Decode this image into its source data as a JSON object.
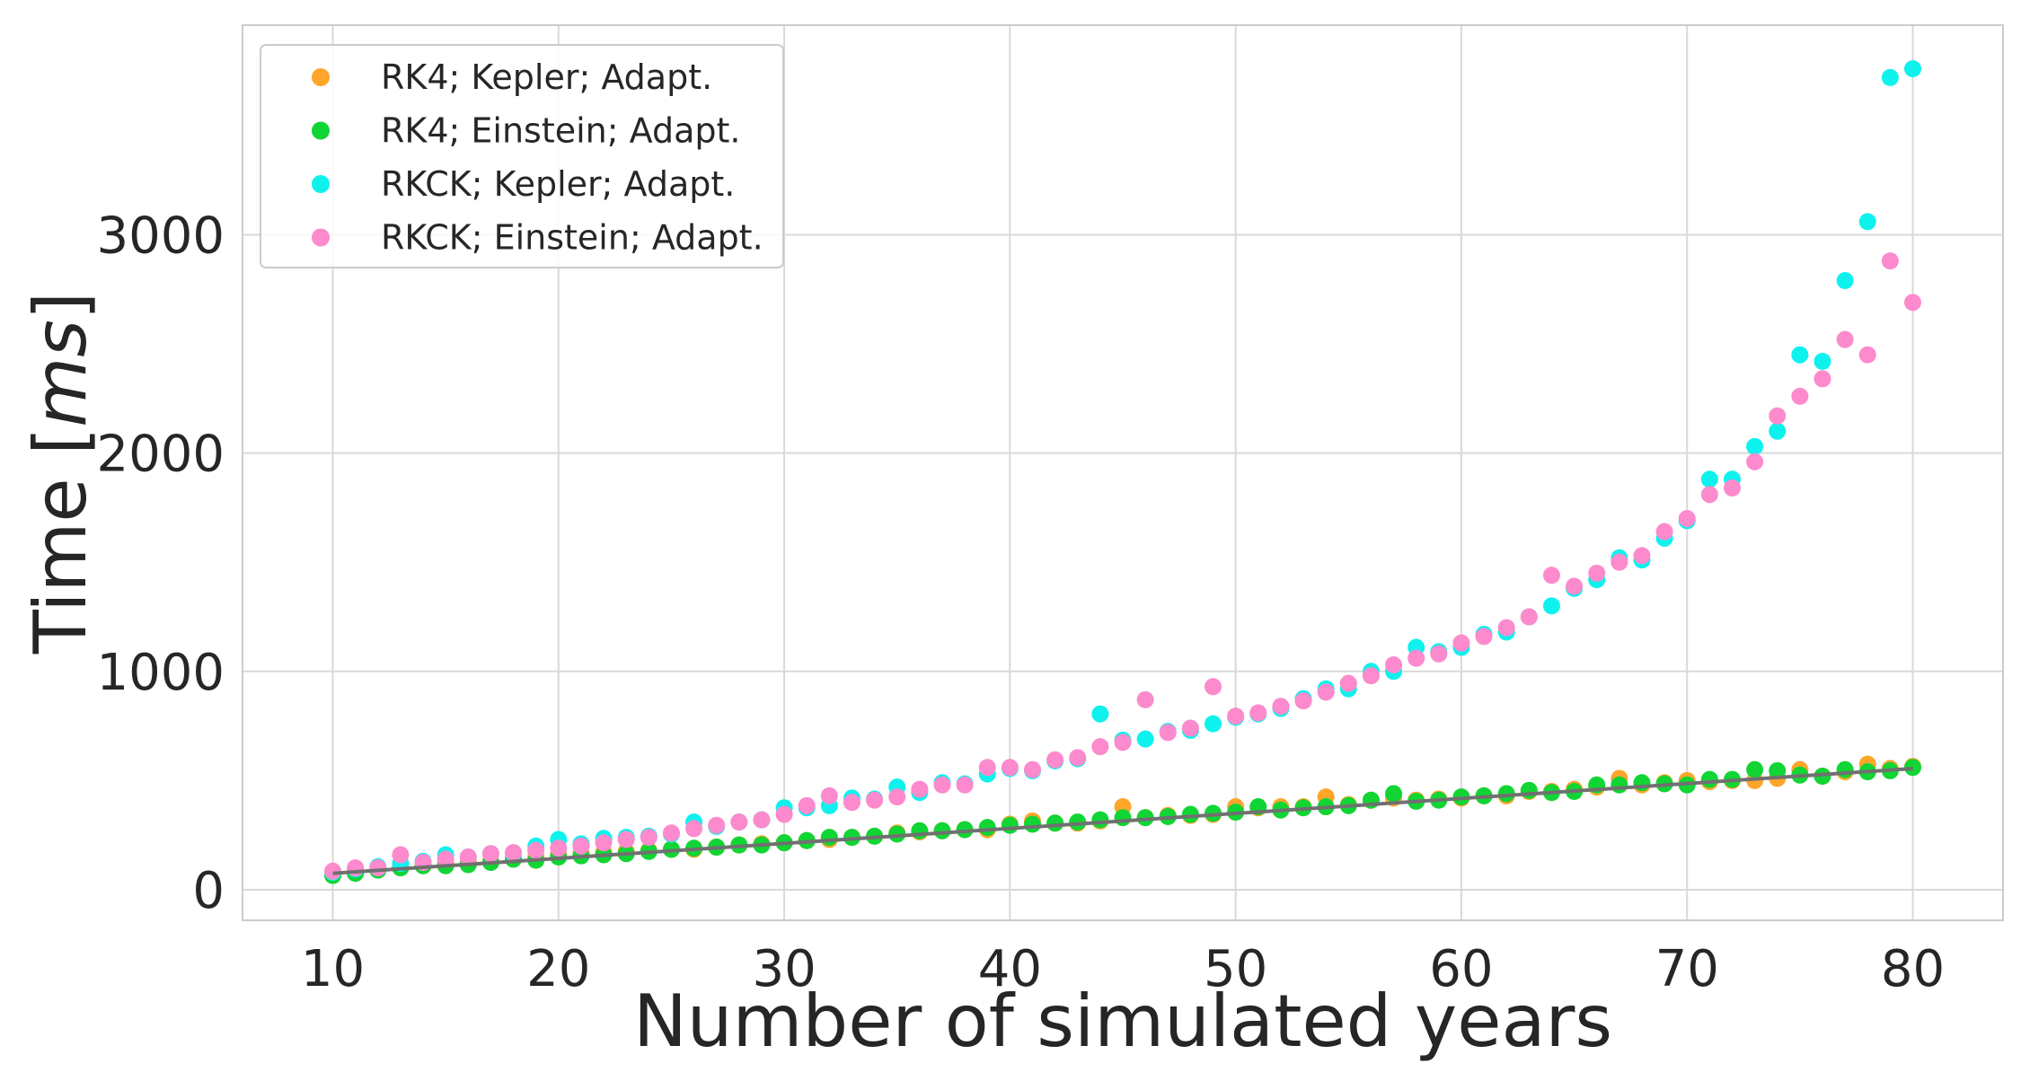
{
  "chart_data": {
    "type": "scatter",
    "title": "",
    "xlabel": "Number of simulated years",
    "ylabel_text": "Time [",
    "ylabel_unit": "ms",
    "ylabel_close": "]",
    "xlim": [
      6,
      84
    ],
    "ylim": [
      -140,
      3960
    ],
    "xticks": [
      10,
      20,
      30,
      40,
      50,
      60,
      70,
      80
    ],
    "yticks": [
      0,
      1000,
      2000,
      3000
    ],
    "grid": true,
    "legend_position": "top-left",
    "x": [
      10,
      11,
      12,
      13,
      14,
      15,
      16,
      17,
      18,
      19,
      20,
      21,
      22,
      23,
      24,
      25,
      26,
      27,
      28,
      29,
      30,
      31,
      32,
      33,
      34,
      35,
      36,
      37,
      38,
      39,
      40,
      41,
      42,
      43,
      44,
      45,
      46,
      47,
      48,
      49,
      50,
      51,
      52,
      53,
      54,
      55,
      56,
      57,
      58,
      59,
      60,
      61,
      62,
      63,
      64,
      65,
      66,
      67,
      68,
      69,
      70,
      71,
      72,
      73,
      74,
      75,
      76,
      77,
      78,
      79,
      80
    ],
    "series": [
      {
        "name": "RK4; Kepler; Adapt.",
        "color": "#ffa52a",
        "values": [
          70,
          80,
          95,
          105,
          110,
          120,
          125,
          130,
          140,
          150,
          160,
          165,
          170,
          175,
          180,
          185,
          185,
          195,
          205,
          210,
          215,
          225,
          230,
          240,
          245,
          260,
          265,
          270,
          275,
          275,
          300,
          315,
          305,
          305,
          315,
          380,
          330,
          340,
          340,
          345,
          380,
          375,
          380,
          380,
          425,
          390,
          410,
          420,
          410,
          415,
          420,
          430,
          430,
          450,
          450,
          460,
          470,
          510,
          480,
          490,
          500,
          495,
          500,
          500,
          510,
          550,
          520,
          540,
          575,
          555,
          565
        ]
      },
      {
        "name": "RK4; Einstein; Adapt.",
        "color": "#11d534",
        "values": [
          65,
          75,
          90,
          100,
          110,
          110,
          115,
          125,
          140,
          135,
          150,
          155,
          160,
          165,
          175,
          185,
          190,
          195,
          205,
          205,
          215,
          225,
          240,
          240,
          245,
          255,
          270,
          270,
          275,
          285,
          295,
          300,
          305,
          310,
          320,
          330,
          330,
          335,
          345,
          350,
          355,
          380,
          365,
          375,
          380,
          385,
          410,
          440,
          405,
          410,
          425,
          430,
          440,
          455,
          445,
          450,
          480,
          480,
          490,
          485,
          480,
          505,
          505,
          550,
          545,
          525,
          520,
          550,
          540,
          545,
          560
        ]
      },
      {
        "name": "RKCK; Kepler; Adapt.",
        "color": "#0ef2ee",
        "values": [
          80,
          95,
          105,
          120,
          130,
          160,
          150,
          165,
          165,
          200,
          230,
          210,
          235,
          240,
          245,
          255,
          310,
          290,
          310,
          320,
          375,
          375,
          385,
          420,
          415,
          470,
          445,
          490,
          485,
          530,
          555,
          545,
          590,
          600,
          805,
          685,
          690,
          725,
          730,
          760,
          790,
          805,
          830,
          875,
          920,
          920,
          1000,
          1000,
          1110,
          1090,
          1110,
          1170,
          1180,
          1250,
          1300,
          1380,
          1420,
          1520,
          1510,
          1610,
          1690,
          1880,
          1880,
          2030,
          2100,
          2450,
          2420,
          2790,
          3060,
          3720,
          3760
        ]
      },
      {
        "name": "RKCK; Einstein; Adapt.",
        "color": "#fc8acd",
        "values": [
          85,
          100,
          100,
          160,
          125,
          140,
          150,
          165,
          170,
          180,
          190,
          200,
          215,
          230,
          240,
          260,
          280,
          295,
          310,
          320,
          345,
          385,
          430,
          400,
          410,
          425,
          460,
          480,
          480,
          560,
          560,
          550,
          595,
          605,
          655,
          675,
          870,
          720,
          740,
          930,
          795,
          810,
          840,
          865,
          905,
          945,
          980,
          1030,
          1060,
          1080,
          1130,
          1160,
          1200,
          1250,
          1440,
          1390,
          1450,
          1500,
          1530,
          1640,
          1700,
          1810,
          1840,
          1960,
          2170,
          2260,
          2340,
          2520,
          2450,
          2880,
          2690
        ]
      }
    ],
    "fit_line": {
      "color": "#707070",
      "x": [
        10,
        80
      ],
      "y": [
        75,
        555
      ]
    }
  }
}
